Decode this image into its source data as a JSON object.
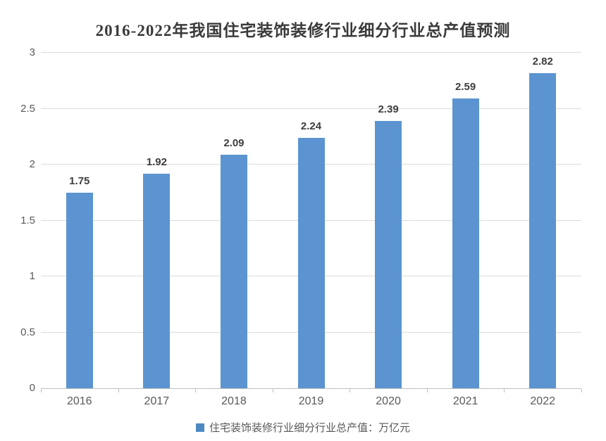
{
  "figure": {
    "title": "2016-2022年我国住宅装饰装修行业细分行业总产值预测"
  },
  "chart_data": {
    "type": "bar",
    "title": "2016-2022年我国住宅装饰装修行业细分行业总产值预测",
    "categories": [
      "2016",
      "2017",
      "2018",
      "2019",
      "2020",
      "2021",
      "2022"
    ],
    "values": [
      1.75,
      1.92,
      2.09,
      2.24,
      2.39,
      2.59,
      2.82
    ],
    "data_labels": [
      "1.75",
      "1.92",
      "2.09",
      "2.24",
      "2.39",
      "2.59",
      "2.82"
    ],
    "series_name": "住宅装饰装修行业细分行业总产值：万亿元",
    "xlabel": "",
    "ylabel": "",
    "ylim": [
      0,
      3
    ],
    "y_ticks": [
      0,
      0.5,
      1,
      1.5,
      2,
      2.5,
      3
    ],
    "y_tick_labels": [
      "0",
      "0.5",
      "1",
      "1.5",
      "2",
      "2.5",
      "3"
    ],
    "grid": true,
    "legend_position": "bottom"
  },
  "colors": {
    "bar": "#5b94d0",
    "legend_swatch": "#4e89c4",
    "gridline": "#dcdcdc",
    "axis_line": "#bfbfbf",
    "tick_label": "#595959",
    "title_text": "#3a3a3a",
    "data_label": "#3d3d3d",
    "background": "#ffffff"
  }
}
